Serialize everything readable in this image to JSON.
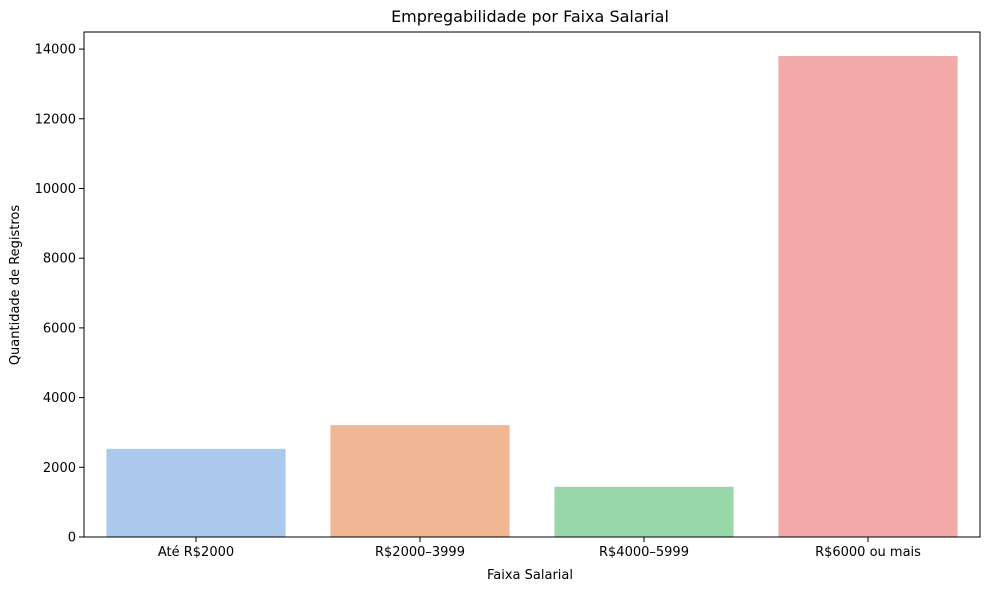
{
  "chart_data": {
    "type": "bar",
    "title": "Empregabilidade por Faixa Salarial",
    "xlabel": "Faixa Salarial",
    "ylabel": "Quantidade de Registros",
    "categories": [
      "Até R$2000",
      "R$2000–3999",
      "R$4000–5999",
      "R$6000 ou mais"
    ],
    "values": [
      2530,
      3210,
      1440,
      13800
    ],
    "colors": [
      "#abc9ed",
      "#efb793",
      "#98d8a8",
      "#f2aaa8"
    ],
    "ylim": [
      0,
      14490
    ],
    "yticks": [
      0,
      2000,
      4000,
      6000,
      8000,
      10000,
      12000,
      14000
    ],
    "ytick_labels": [
      "0",
      "2000",
      "4000",
      "6000",
      "8000",
      "10000",
      "12000",
      "14000"
    ],
    "grid": false,
    "legend": "none"
  }
}
